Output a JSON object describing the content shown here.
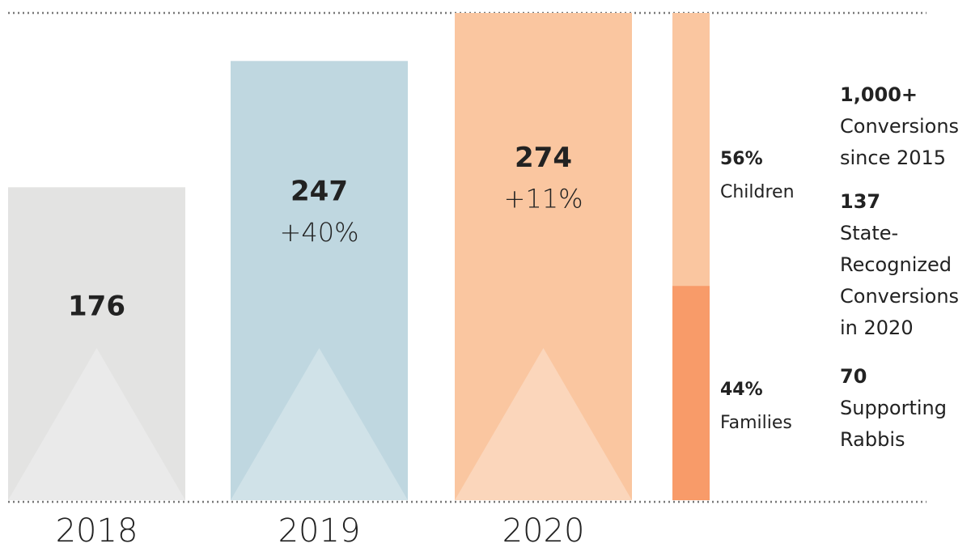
{
  "chart_data": [
    {
      "type": "bar",
      "categories": [
        "2018",
        "2019",
        "2020"
      ],
      "values": [
        176,
        247,
        274
      ],
      "change_labels": [
        null,
        "+40%",
        "+11%"
      ],
      "colors": [
        "#e3e3e2",
        "#bfd7e0",
        "#fac6a0"
      ],
      "accent_colors": [
        "#eaeaea",
        "#d0e2e8",
        "#fbd6bb"
      ]
    },
    {
      "type": "stacked",
      "series": [
        {
          "name": "Children",
          "color": "#fac6a0",
          "values": [
            56
          ],
          "value_labels": [
            "56%"
          ]
        },
        {
          "name": "Families",
          "color": "#f89b69",
          "values": [
            44
          ],
          "value_labels": [
            "44%"
          ]
        }
      ]
    }
  ],
  "stats": [
    {
      "value": "1,000+",
      "label": "Conversions since 2015"
    },
    {
      "value": "137",
      "label": "State-Recognized Conversions in 2020"
    },
    {
      "value": "70",
      "label": "Supporting Rabbis"
    }
  ]
}
